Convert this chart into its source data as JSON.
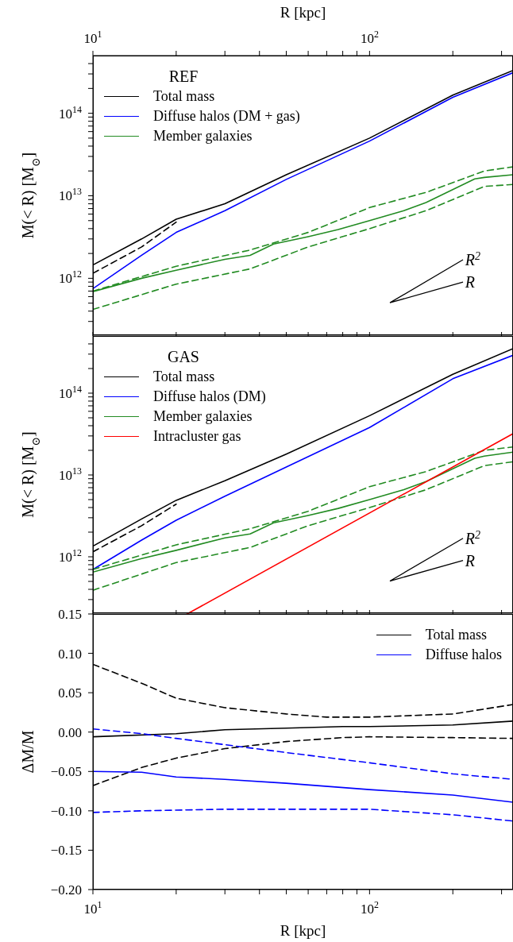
{
  "chart_data": [
    {
      "type": "line",
      "legend_title": "REF",
      "ylabel": "M(< R) [M$_{⊙}$]",
      "xlabel": "R [kpc]",
      "log": "xy",
      "legend": "top left",
      "xlim": [
        10,
        330
      ],
      "xticks": [
        {
          "value": 10,
          "label": "10$^{1}$"
        },
        {
          "value": 20,
          "label": null
        },
        {
          "value": 30,
          "label": null
        },
        {
          "value": 40,
          "label": null
        },
        {
          "value": 50,
          "label": null
        },
        {
          "value": 60,
          "label": null
        },
        {
          "value": 70,
          "label": null
        },
        {
          "value": 80,
          "label": null
        },
        {
          "value": 90,
          "label": null
        },
        {
          "value": 100,
          "label": "10$^{2}$"
        },
        {
          "value": 200,
          "label": null
        },
        {
          "value": 300,
          "label": null
        }
      ],
      "ylim": [
        200000000000.0,
        500000000000000.0
      ],
      "yticks": [
        {
          "value": 1000000000000.0,
          "label": "10$^{12}$"
        },
        {
          "value": 10000000000000.0,
          "label": "10$^{13}$"
        },
        {
          "value": 100000000000000.0,
          "label": "10$^{14}$"
        },
        {
          "value": 300000000000.0,
          "label": null
        },
        {
          "value": 400000000000.0,
          "label": null
        },
        {
          "value": 500000000000.0,
          "label": null
        },
        {
          "value": 600000000000.0,
          "label": null
        },
        {
          "value": 700000000000.0,
          "label": null
        },
        {
          "value": 800000000000.0,
          "label": null
        },
        {
          "value": 900000000000.0,
          "label": null
        },
        {
          "value": 2000000000000.0,
          "label": null
        },
        {
          "value": 3000000000000.0,
          "label": null
        },
        {
          "value": 4000000000000.0,
          "label": null
        },
        {
          "value": 5000000000000.0,
          "label": null
        },
        {
          "value": 6000000000000.0,
          "label": null
        },
        {
          "value": 7000000000000.0,
          "label": null
        },
        {
          "value": 8000000000000.0,
          "label": null
        },
        {
          "value": 9000000000000.0,
          "label": null
        },
        {
          "value": 20000000000000.0,
          "label": null
        },
        {
          "value": 30000000000000.0,
          "label": null
        },
        {
          "value": 40000000000000.0,
          "label": null
        },
        {
          "value": 50000000000000.0,
          "label": null
        },
        {
          "value": 60000000000000.0,
          "label": null
        },
        {
          "value": 70000000000000.0,
          "label": null
        },
        {
          "value": 80000000000000.0,
          "label": null
        },
        {
          "value": 90000000000000.0,
          "label": null
        },
        {
          "value": 200000000000000.0,
          "label": null
        },
        {
          "value": 300000000000000.0,
          "label": null
        },
        {
          "value": 400000000000000.0,
          "label": null
        }
      ],
      "annotations": [
        "R$^{2}$",
        "R"
      ],
      "series": [
        {
          "name": "Total mass",
          "color": "#000000",
          "x": [
            10,
            15,
            20,
            30,
            50,
            100,
            200,
            330
          ],
          "values": [
            1450000000000.0,
            3000000000000.0,
            5200000000000.0,
            8000000000000.0,
            18000000000000.0,
            50000000000000.0,
            166000000000000.0,
            330000000000000.0
          ]
        },
        {
          "color": "#000000",
          "line_style": "dashed",
          "x": [
            10,
            15,
            20
          ],
          "values": [
            1150000000000.0,
            2400000000000.0,
            4800000000000.0
          ]
        },
        {
          "name": "Diffuse halos (DM + gas)",
          "color": "#0000ff",
          "x": [
            10,
            15,
            20,
            30,
            50,
            100,
            200,
            330
          ],
          "values": [
            750000000000.0,
            1900000000000.0,
            3600000000000.0,
            6600000000000.0,
            15800000000000.0,
            46000000000000.0,
            156000000000000.0,
            310000000000000.0
          ]
        },
        {
          "name": "Member galaxies",
          "color": "#228b22",
          "x": [
            10,
            15,
            20,
            30,
            37,
            45,
            60,
            77,
            100,
            133,
            160,
            240,
            260,
            330
          ],
          "values": [
            690000000000.0,
            1000000000000.0,
            1250000000000.0,
            1700000000000.0,
            1900000000000.0,
            2600000000000.0,
            3200000000000.0,
            3900000000000.0,
            5000000000000.0,
            6600000000000.0,
            8300000000000.0,
            16000000000000.0,
            16700000000000.0,
            18000000000000.0
          ]
        },
        {
          "color": "#228b22",
          "line_style": "dashed",
          "x": [
            10,
            20,
            37,
            60,
            100,
            160,
            260,
            330
          ],
          "values": [
            700000000000.0,
            1400000000000.0,
            2200000000000.0,
            3600000000000.0,
            7200000000000.0,
            11000000000000.0,
            20000000000000.0,
            22400000000000.0
          ]
        },
        {
          "color": "#228b22",
          "line_style": "dashed",
          "x": [
            10,
            20,
            37,
            60,
            100,
            160,
            260,
            330
          ],
          "values": [
            420000000000.0,
            850000000000.0,
            1300000000000.0,
            2400000000000.0,
            4000000000000.0,
            6600000000000.0,
            13000000000000.0,
            13700000000000.0
          ]
        }
      ]
    },
    {
      "type": "line",
      "legend_title": "GAS",
      "ylabel": "M(< R) [M$_{⊙}$]",
      "log": "xy",
      "legend": "top left",
      "tick_labels": "y",
      "xlim": [
        10,
        330
      ],
      "xticks": [
        {
          "value": 10,
          "label": null
        },
        {
          "value": 20,
          "label": null
        },
        {
          "value": 30,
          "label": null
        },
        {
          "value": 40,
          "label": null
        },
        {
          "value": 50,
          "label": null
        },
        {
          "value": 60,
          "label": null
        },
        {
          "value": 70,
          "label": null
        },
        {
          "value": 80,
          "label": null
        },
        {
          "value": 90,
          "label": null
        },
        {
          "value": 100,
          "label": null
        },
        {
          "value": 200,
          "label": null
        },
        {
          "value": 300,
          "label": null
        }
      ],
      "ylim": [
        200000000000.0,
        500000000000000.0
      ],
      "yticks": [
        {
          "value": 1000000000000.0,
          "label": "10$^{12}$"
        },
        {
          "value": 10000000000000.0,
          "label": "10$^{13}$"
        },
        {
          "value": 100000000000000.0,
          "label": "10$^{14}$"
        },
        {
          "value": 300000000000.0,
          "label": null
        },
        {
          "value": 400000000000.0,
          "label": null
        },
        {
          "value": 500000000000.0,
          "label": null
        },
        {
          "value": 600000000000.0,
          "label": null
        },
        {
          "value": 700000000000.0,
          "label": null
        },
        {
          "value": 800000000000.0,
          "label": null
        },
        {
          "value": 900000000000.0,
          "label": null
        },
        {
          "value": 2000000000000.0,
          "label": null
        },
        {
          "value": 3000000000000.0,
          "label": null
        },
        {
          "value": 4000000000000.0,
          "label": null
        },
        {
          "value": 5000000000000.0,
          "label": null
        },
        {
          "value": 6000000000000.0,
          "label": null
        },
        {
          "value": 7000000000000.0,
          "label": null
        },
        {
          "value": 8000000000000.0,
          "label": null
        },
        {
          "value": 9000000000000.0,
          "label": null
        },
        {
          "value": 20000000000000.0,
          "label": null
        },
        {
          "value": 30000000000000.0,
          "label": null
        },
        {
          "value": 40000000000000.0,
          "label": null
        },
        {
          "value": 50000000000000.0,
          "label": null
        },
        {
          "value": 60000000000000.0,
          "label": null
        },
        {
          "value": 70000000000000.0,
          "label": null
        },
        {
          "value": 80000000000000.0,
          "label": null
        },
        {
          "value": 90000000000000.0,
          "label": null
        },
        {
          "value": 200000000000000.0,
          "label": null
        },
        {
          "value": 300000000000000.0,
          "label": null
        },
        {
          "value": 400000000000000.0,
          "label": null
        }
      ],
      "annotations": [
        "R$^{2}$",
        "R"
      ],
      "series": [
        {
          "name": "Total mass",
          "color": "#000000",
          "x": [
            10,
            15,
            20,
            30,
            50,
            100,
            200,
            330
          ],
          "values": [
            1350000000000.0,
            2900000000000.0,
            4900000000000.0,
            8500000000000.0,
            18000000000000.0,
            53000000000000.0,
            170000000000000.0,
            350000000000000.0
          ]
        },
        {
          "color": "#000000",
          "line_style": "dashed",
          "x": [
            10,
            15,
            20
          ],
          "values": [
            1150000000000.0,
            2400000000000.0,
            4400000000000.0
          ]
        },
        {
          "name": "Diffuse halos (DM)",
          "color": "#0000ff",
          "x": [
            10,
            15,
            20,
            30,
            50,
            100,
            200,
            330
          ],
          "values": [
            700000000000.0,
            1600000000000.0,
            2800000000000.0,
            5500000000000.0,
            12500000000000.0,
            38000000000000.0,
            150000000000000.0,
            290000000000000.0
          ]
        },
        {
          "name": "Member galaxies",
          "color": "#228b22",
          "x": [
            10,
            15,
            20,
            30,
            37,
            45,
            60,
            77,
            100,
            133,
            160,
            240,
            260,
            330
          ],
          "values": [
            650000000000.0,
            950000000000.0,
            1200000000000.0,
            1700000000000.0,
            1900000000000.0,
            2600000000000.0,
            3200000000000.0,
            3900000000000.0,
            5000000000000.0,
            6600000000000.0,
            8300000000000.0,
            16000000000000.0,
            17000000000000.0,
            19000000000000.0
          ]
        },
        {
          "color": "#228b22",
          "line_style": "dashed",
          "x": [
            10,
            20,
            37,
            60,
            100,
            160,
            260,
            330
          ],
          "values": [
            700000000000.0,
            1400000000000.0,
            2200000000000.0,
            3600000000000.0,
            7200000000000.0,
            11000000000000.0,
            20000000000000.0,
            22000000000000.0
          ]
        },
        {
          "color": "#228b22",
          "line_style": "dashed",
          "x": [
            10,
            20,
            37,
            60,
            100,
            160,
            260,
            330
          ],
          "values": [
            390000000000.0,
            850000000000.0,
            1300000000000.0,
            2400000000000.0,
            4000000000000.0,
            6600000000000.0,
            13000000000000.0,
            14500000000000.0
          ]
        },
        {
          "name": "Intracluster gas",
          "color": "#ff0000",
          "x": [
            21.9,
            330
          ],
          "values": [
            200000000000.0,
            32000000000000.0
          ]
        }
      ]
    },
    {
      "type": "line",
      "ylabel": "ΔM/M",
      "xlabel": "R [kpc]",
      "log": "x",
      "legend": "top right",
      "xlim": [
        10,
        330
      ],
      "xticks": [
        {
          "value": 10,
          "label": "10$^{1}$"
        },
        {
          "value": 20,
          "label": null
        },
        {
          "value": 30,
          "label": null
        },
        {
          "value": 40,
          "label": null
        },
        {
          "value": 50,
          "label": null
        },
        {
          "value": 60,
          "label": null
        },
        {
          "value": 70,
          "label": null
        },
        {
          "value": 80,
          "label": null
        },
        {
          "value": 90,
          "label": null
        },
        {
          "value": 100,
          "label": "10$^{2}$"
        },
        {
          "value": 200,
          "label": null
        },
        {
          "value": 300,
          "label": null
        }
      ],
      "ylim": [
        -0.2,
        0.15
      ],
      "yticks": [
        {
          "value": -0.2,
          "label": "−0.20"
        },
        {
          "value": -0.15,
          "label": "−0.15"
        },
        {
          "value": -0.1,
          "label": "−0.10"
        },
        {
          "value": -0.05,
          "label": "−0.05"
        },
        {
          "value": 0,
          "label": "0.00"
        },
        {
          "value": 0.05,
          "label": "0.05"
        },
        {
          "value": 0.1,
          "label": "0.10"
        },
        {
          "value": 0.15,
          "label": "0.15"
        }
      ],
      "series": [
        {
          "name": "Total mass",
          "color": "#000000",
          "x": [
            10,
            20,
            30,
            50,
            80,
            100,
            200,
            330
          ],
          "values": [
            -0.006,
            -0.002,
            0.003,
            0.005,
            0.007,
            0.007,
            0.009,
            0.014
          ]
        },
        {
          "color": "#000000",
          "line_style": "dashed",
          "x": [
            10,
            15,
            20,
            30,
            50,
            70,
            100,
            200,
            330
          ],
          "values": [
            0.086,
            0.062,
            0.043,
            0.031,
            0.023,
            0.019,
            0.019,
            0.023,
            0.035
          ]
        },
        {
          "color": "#000000",
          "line_style": "dashed",
          "x": [
            10,
            15,
            20,
            30,
            50,
            80,
            100,
            200,
            330
          ],
          "values": [
            -0.068,
            -0.045,
            -0.033,
            -0.021,
            -0.012,
            -0.007,
            -0.006,
            -0.007,
            -0.008
          ]
        },
        {
          "name": "Diffuse halos",
          "color": "#0000ff",
          "x": [
            10,
            15,
            20,
            30,
            50,
            100,
            200,
            330
          ],
          "values": [
            -0.05,
            -0.051,
            -0.057,
            -0.06,
            -0.065,
            -0.073,
            -0.08,
            -0.089
          ]
        },
        {
          "color": "#0000ff",
          "line_style": "dashed",
          "x": [
            10,
            15,
            20,
            30,
            50,
            100,
            200,
            330
          ],
          "values": [
            0.004,
            -0.002,
            -0.008,
            -0.016,
            -0.026,
            -0.039,
            -0.053,
            -0.06
          ]
        },
        {
          "color": "#0000ff",
          "line_style": "dashed",
          "x": [
            10,
            15,
            30,
            100,
            200,
            330
          ],
          "values": [
            -0.102,
            -0.1,
            -0.098,
            -0.098,
            -0.105,
            -0.113
          ]
        }
      ]
    }
  ]
}
